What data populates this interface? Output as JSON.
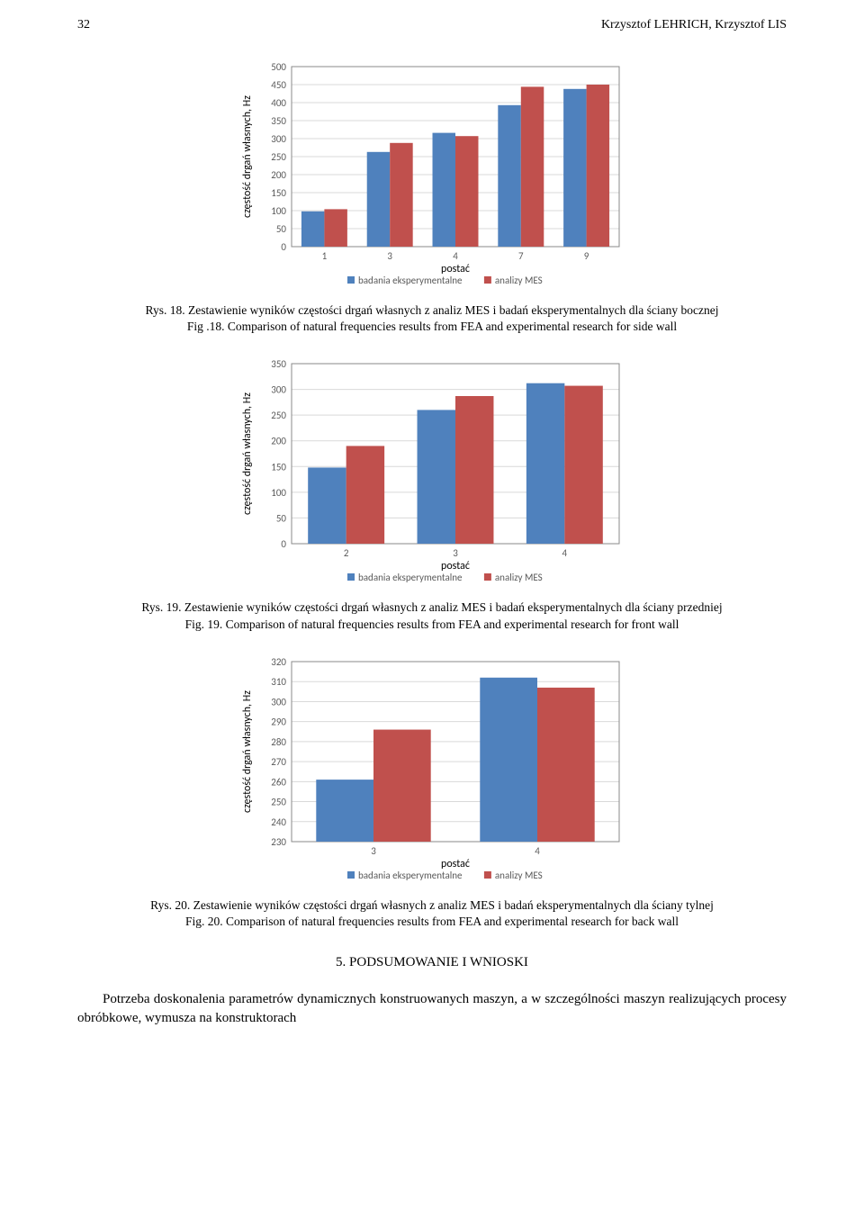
{
  "header": {
    "page_num": "32",
    "authors": "Krzysztof LEHRICH, Krzysztof LIS"
  },
  "chart18": {
    "type": "bar",
    "ylabel": "częstość drgań własnych, Hz",
    "xlabel": "postać",
    "categories": [
      "1",
      "3",
      "4",
      "7",
      "9"
    ],
    "series": [
      {
        "name": "badania eksperymentalne",
        "color": "#4f81bd",
        "values": [
          98,
          263,
          316,
          393,
          438
        ]
      },
      {
        "name": "analizy MES",
        "color": "#c0504d",
        "values": [
          104,
          288,
          307,
          444,
          450
        ]
      }
    ],
    "ylim": [
      0,
      500
    ],
    "ytick_step": 50,
    "background_color": "#ffffff",
    "grid_color": "#d9d9d9",
    "bar_width": 0.7,
    "legend_markers": {
      "exp": "#4f81bd",
      "mes": "#c0504d"
    }
  },
  "caption18": {
    "line1": "Rys. 18. Zestawienie wyników częstości drgań własnych z analiz MES i badań eksperymentalnych dla ściany bocznej",
    "line2": "Fig .18. Comparison of natural frequencies results from FEA and experimental research for side wall"
  },
  "chart19": {
    "type": "bar",
    "ylabel": "częstość drgań własnych, Hz",
    "xlabel": "postać",
    "categories": [
      "2",
      "3",
      "4"
    ],
    "series": [
      {
        "name": "badania eksperymentalne",
        "color": "#4f81bd",
        "values": [
          148,
          260,
          312
        ]
      },
      {
        "name": "analizy MES",
        "color": "#c0504d",
        "values": [
          190,
          287,
          307
        ]
      }
    ],
    "ylim": [
      0,
      350
    ],
    "ytick_step": 50,
    "background_color": "#ffffff",
    "grid_color": "#d9d9d9",
    "bar_width": 0.7,
    "legend_markers": {
      "exp": "#4f81bd",
      "mes": "#c0504d"
    }
  },
  "caption19": {
    "line1": "Rys. 19. Zestawienie wyników częstości drgań własnych z analiz MES i badań eksperymentalnych dla ściany przedniej",
    "line2": "Fig. 19. Comparison of natural frequencies results from FEA and experimental research for front wall"
  },
  "chart20": {
    "type": "bar",
    "ylabel": "częstość drgań własnych, Hz",
    "xlabel": "postać",
    "categories": [
      "3",
      "4"
    ],
    "series": [
      {
        "name": "badania eksperymentalne",
        "color": "#4f81bd",
        "values": [
          261,
          312
        ]
      },
      {
        "name": "analizy MES",
        "color": "#c0504d",
        "values": [
          286,
          307
        ]
      }
    ],
    "ylim": [
      230,
      320
    ],
    "ytick_step": 10,
    "background_color": "#ffffff",
    "grid_color": "#d9d9d9",
    "bar_width": 0.7,
    "legend_markers": {
      "exp": "#4f81bd",
      "mes": "#c0504d"
    }
  },
  "caption20": {
    "line1": "Rys. 20. Zestawienie wyników częstości drgań własnych z analiz MES i badań eksperymentalnych dla ściany tylnej",
    "line2": "Fig. 20. Comparison of natural frequencies results from FEA and experimental research for back wall"
  },
  "section": {
    "title": "5. PODSUMOWANIE I WNIOSKI"
  },
  "body": {
    "para1": "Potrzeba doskonalenia parametrów dynamicznych konstruowanych maszyn, a w szczególności maszyn realizujących procesy obróbkowe, wymusza na konstruktorach"
  }
}
